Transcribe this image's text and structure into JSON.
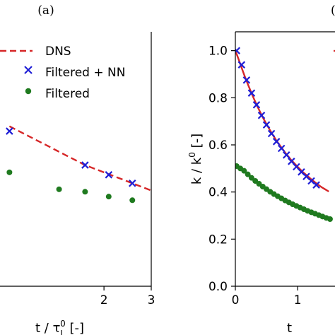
{
  "colors": {
    "dns": "#d62728",
    "filtered_nn": "#1f1fd6",
    "filtered": "#1f7a1f",
    "axes": "#000000"
  },
  "chart_data": [
    {
      "type": "line",
      "panel_label": "(a)",
      "xlabel": "t / τ",
      "xlabel_sub": "L",
      "xlabel_sup": "0",
      "xlabel_suffix": " [-]",
      "xlim": [
        -0.2,
        3.0
      ],
      "ylim": [
        0.0,
        1.05
      ],
      "xticks": [
        2,
        3
      ],
      "legend": {
        "placement": "top-right",
        "entries": [
          {
            "series": "dns",
            "label": "DNS"
          },
          {
            "series": "filtered_nn",
            "label": "Filtered + NN"
          },
          {
            "series": "filtered",
            "label": "Filtered"
          }
        ]
      },
      "series": [
        {
          "key": "dns",
          "style": "dashed-line",
          "x": [
            0.0,
            0.2,
            0.4,
            0.6,
            0.8,
            1.0,
            1.2,
            1.4,
            1.6,
            1.8,
            2.0,
            2.2,
            2.4,
            2.6,
            2.8,
            3.0
          ],
          "y": [
            0.66,
            0.64,
            0.62,
            0.6,
            0.58,
            0.56,
            0.54,
            0.52,
            0.5,
            0.485,
            0.47,
            0.455,
            0.44,
            0.425,
            0.41,
            0.395
          ]
        },
        {
          "key": "filtered_nn",
          "style": "x-marker",
          "x": [
            0.0,
            1.6,
            2.1,
            2.6
          ],
          "y": [
            0.64,
            0.5,
            0.46,
            0.425
          ]
        },
        {
          "key": "filtered",
          "style": "dot-marker",
          "x": [
            0.0,
            1.05,
            1.6,
            2.1,
            2.6
          ],
          "y": [
            0.47,
            0.4,
            0.39,
            0.37,
            0.355
          ]
        }
      ]
    },
    {
      "type": "line",
      "panel_label": "(b)",
      "ylabel": "k / k",
      "ylabel_sup": "0",
      "ylabel_suffix": " [-]",
      "xlabel": "t",
      "xlim": [
        0.0,
        1.6
      ],
      "ylim": [
        0.0,
        1.08
      ],
      "xticks": [
        0,
        1
      ],
      "yticks": [
        0.0,
        0.2,
        0.4,
        0.6,
        0.8,
        1.0
      ],
      "ytick_labels": [
        "0.0",
        "0.2",
        "0.4",
        "0.6",
        "0.8",
        "1.0"
      ],
      "legend": {
        "placement": "top-right",
        "entries": [
          {
            "series": "dns",
            "label": ""
          }
        ]
      },
      "series": [
        {
          "key": "dns",
          "style": "solid-line",
          "x": [
            0.0,
            0.05,
            0.1,
            0.15,
            0.2,
            0.25,
            0.3,
            0.35,
            0.4,
            0.45,
            0.5,
            0.55,
            0.6,
            0.65,
            0.7,
            0.75,
            0.8,
            0.85,
            0.9,
            0.95,
            1.0,
            1.05,
            1.1,
            1.15,
            1.2,
            1.25,
            1.3,
            1.35,
            1.4,
            1.45,
            1.5
          ],
          "y": [
            1.0,
            0.965,
            0.928,
            0.892,
            0.858,
            0.826,
            0.795,
            0.766,
            0.738,
            0.712,
            0.688,
            0.665,
            0.643,
            0.622,
            0.603,
            0.585,
            0.567,
            0.551,
            0.535,
            0.521,
            0.507,
            0.494,
            0.481,
            0.47,
            0.458,
            0.447,
            0.437,
            0.427,
            0.418,
            0.41,
            0.402
          ]
        },
        {
          "key": "filtered_nn",
          "style": "x-marker",
          "x": [
            0.02,
            0.1,
            0.18,
            0.26,
            0.34,
            0.42,
            0.5,
            0.58,
            0.66,
            0.74,
            0.82,
            0.9,
            0.98,
            1.06,
            1.14,
            1.22,
            1.3
          ],
          "y": [
            1.0,
            0.94,
            0.875,
            0.82,
            0.77,
            0.725,
            0.685,
            0.648,
            0.614,
            0.585,
            0.557,
            0.53,
            0.507,
            0.485,
            0.466,
            0.447,
            0.43
          ]
        },
        {
          "key": "filtered",
          "style": "dot-marker",
          "x": [
            0.02,
            0.08,
            0.14,
            0.2,
            0.26,
            0.32,
            0.38,
            0.44,
            0.5,
            0.56,
            0.62,
            0.68,
            0.74,
            0.8,
            0.86,
            0.92,
            0.98,
            1.04,
            1.1,
            1.16,
            1.22,
            1.28,
            1.34,
            1.4,
            1.46,
            1.52
          ],
          "y": [
            0.51,
            0.5,
            0.49,
            0.475,
            0.46,
            0.447,
            0.435,
            0.423,
            0.412,
            0.401,
            0.391,
            0.382,
            0.373,
            0.364,
            0.356,
            0.348,
            0.341,
            0.334,
            0.327,
            0.32,
            0.314,
            0.308,
            0.302,
            0.296,
            0.29,
            0.285
          ]
        }
      ]
    }
  ]
}
